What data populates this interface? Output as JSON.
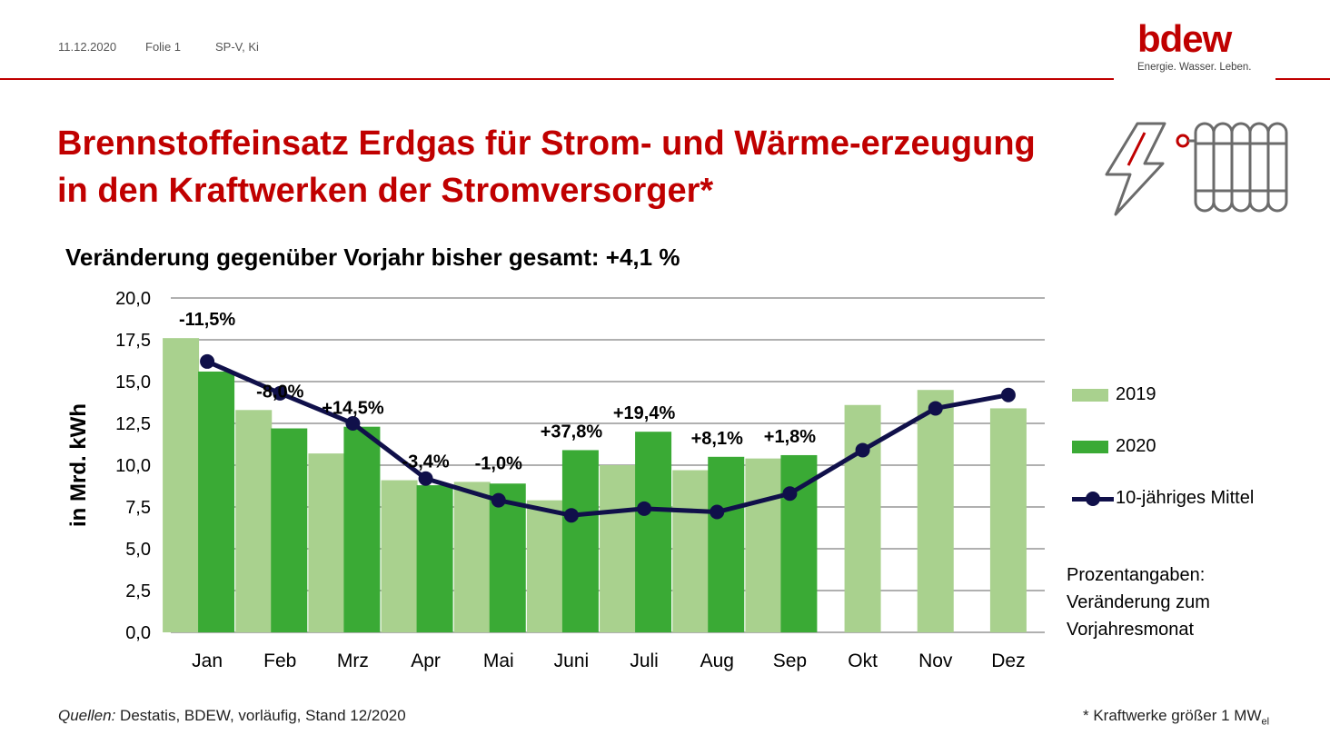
{
  "header": {
    "date": "11.12.2020",
    "slide": "Folie 1",
    "author": "SP-V, Ki",
    "logo_word": "bdew",
    "logo_tagline": "Energie. Wasser. Leben."
  },
  "title": "Brennstoffeinsatz Erdgas für Strom- und Wärme-erzeugung in den Kraftwerken der Stromversorger*",
  "subtitle": "Veränderung gegenüber Vorjahr bisher gesamt: +4,1 %",
  "icons": [
    "lightning-icon",
    "radiator-icon"
  ],
  "colors": {
    "accent": "#c00000",
    "series_2019": "#a9d18e",
    "series_2020": "#3aaa35",
    "series_mean": "#10104a",
    "grid": "#808080"
  },
  "note": {
    "line1": "Prozentangaben:",
    "line2": "Veränderung zum",
    "line3": "Vorjahresmonat"
  },
  "footer": {
    "source_label": "Quellen:",
    "source_text": " Destatis, BDEW, vorläufig, Stand 12/2020",
    "footnote": "* Kraftwerke größer 1 MW",
    "footnote_sub": "el"
  },
  "chart_data": {
    "type": "bar",
    "ylabel": "in Mrd. kWh",
    "ylim": [
      0,
      20
    ],
    "yticks": [
      "0,0",
      "2,5",
      "5,0",
      "7,5",
      "10,0",
      "12,5",
      "15,0",
      "17,5",
      "20,0"
    ],
    "grid": true,
    "legend_position": "right",
    "categories": [
      "Jan",
      "Feb",
      "Mrz",
      "Apr",
      "Mai",
      "Juni",
      "Juli",
      "Aug",
      "Sep",
      "Okt",
      "Nov",
      "Dez"
    ],
    "series": [
      {
        "name": "2019",
        "type": "bar",
        "values": [
          17.6,
          13.3,
          10.7,
          9.1,
          9.0,
          7.9,
          10.0,
          9.7,
          10.4,
          13.6,
          14.5,
          13.4
        ]
      },
      {
        "name": "2020",
        "type": "bar",
        "values": [
          15.6,
          12.2,
          12.3,
          8.8,
          8.9,
          10.9,
          12.0,
          10.5,
          10.6,
          null,
          null,
          null
        ]
      },
      {
        "name": "10-jähriges Mittel",
        "type": "line",
        "values": [
          16.2,
          14.3,
          12.5,
          9.2,
          7.9,
          7.0,
          7.4,
          7.2,
          8.3,
          10.9,
          13.4,
          14.2
        ]
      }
    ],
    "data_labels": [
      "-11,5%",
      "-8,0%",
      "+14,5%",
      "-3,4%",
      "-1,0%",
      "+37,8%",
      "+19,4%",
      "+8,1%",
      "+1,8%",
      null,
      null,
      null
    ]
  }
}
